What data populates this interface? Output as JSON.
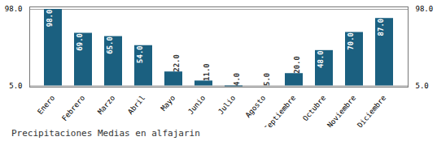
{
  "chart_data": {
    "type": "bar",
    "title": "Precipitaciones Medias en alfajarin",
    "categories": [
      "Enero",
      "Febrero",
      "Marzo",
      "Abril",
      "Mayo",
      "Junio",
      "Julio",
      "Agosto",
      "Septiembre",
      "Octubre",
      "Noviembre",
      "Diciembre"
    ],
    "values": [
      98.0,
      69.0,
      65.0,
      54.0,
      22.0,
      11.0,
      4.0,
      5.0,
      20.0,
      48.0,
      70.0,
      87.0
    ],
    "value_labels": [
      "98.0",
      "69.0",
      "65.0",
      "54.0",
      "22.0",
      "11.0",
      "4.0",
      "5.0",
      "20.0",
      "48.0",
      "70.0",
      "87.0"
    ],
    "color": "#1b6080",
    "baseline": 5.0,
    "ylim": [
      3.5,
      101.0
    ],
    "yticks": [
      {
        "value": 5.0,
        "label": "5.0"
      },
      {
        "value": 98.0,
        "label": "98.0"
      }
    ],
    "y2lim": [
      3.5,
      101.0
    ],
    "y2ticks": [
      {
        "value": 5.0,
        "label": "5.0"
      },
      {
        "value": 98.0,
        "label": "98.0"
      }
    ],
    "grid": true,
    "data_labels": true
  }
}
